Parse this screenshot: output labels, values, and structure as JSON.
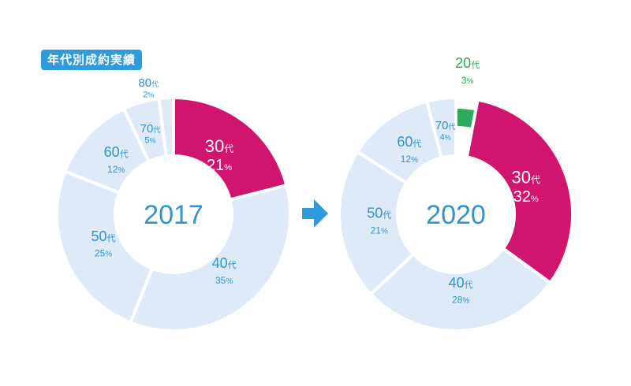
{
  "badge": {
    "label": "年代別成約実績"
  },
  "colors": {
    "segment_fill": "#deeaf8",
    "highlight_fill": "#d0156f",
    "young_fill": "#2cab5a",
    "label_blue": "#2f94d0",
    "label_green": "#2cab5a",
    "label_white": "#ffffff",
    "separator": "#ffffff"
  },
  "arrow_icon": "right-arrow-icon",
  "chart_data": [
    {
      "type": "pie",
      "title": "2017",
      "unit_suffix": "代",
      "percent_suffix": "%",
      "slices": [
        {
          "label": "30",
          "value": 21,
          "highlight": true
        },
        {
          "label": "40",
          "value": 35
        },
        {
          "label": "50",
          "value": 25
        },
        {
          "label": "60",
          "value": 12
        },
        {
          "label": "70",
          "value": 5
        },
        {
          "label": "80",
          "value": 2
        }
      ]
    },
    {
      "type": "pie",
      "title": "2020",
      "unit_suffix": "代",
      "percent_suffix": "%",
      "slices": [
        {
          "label": "20",
          "value": 3,
          "young": true
        },
        {
          "label": "30",
          "value": 32,
          "highlight": true
        },
        {
          "label": "40",
          "value": 28
        },
        {
          "label": "50",
          "value": 21
        },
        {
          "label": "60",
          "value": 12
        },
        {
          "label": "70",
          "value": 4
        }
      ]
    }
  ]
}
